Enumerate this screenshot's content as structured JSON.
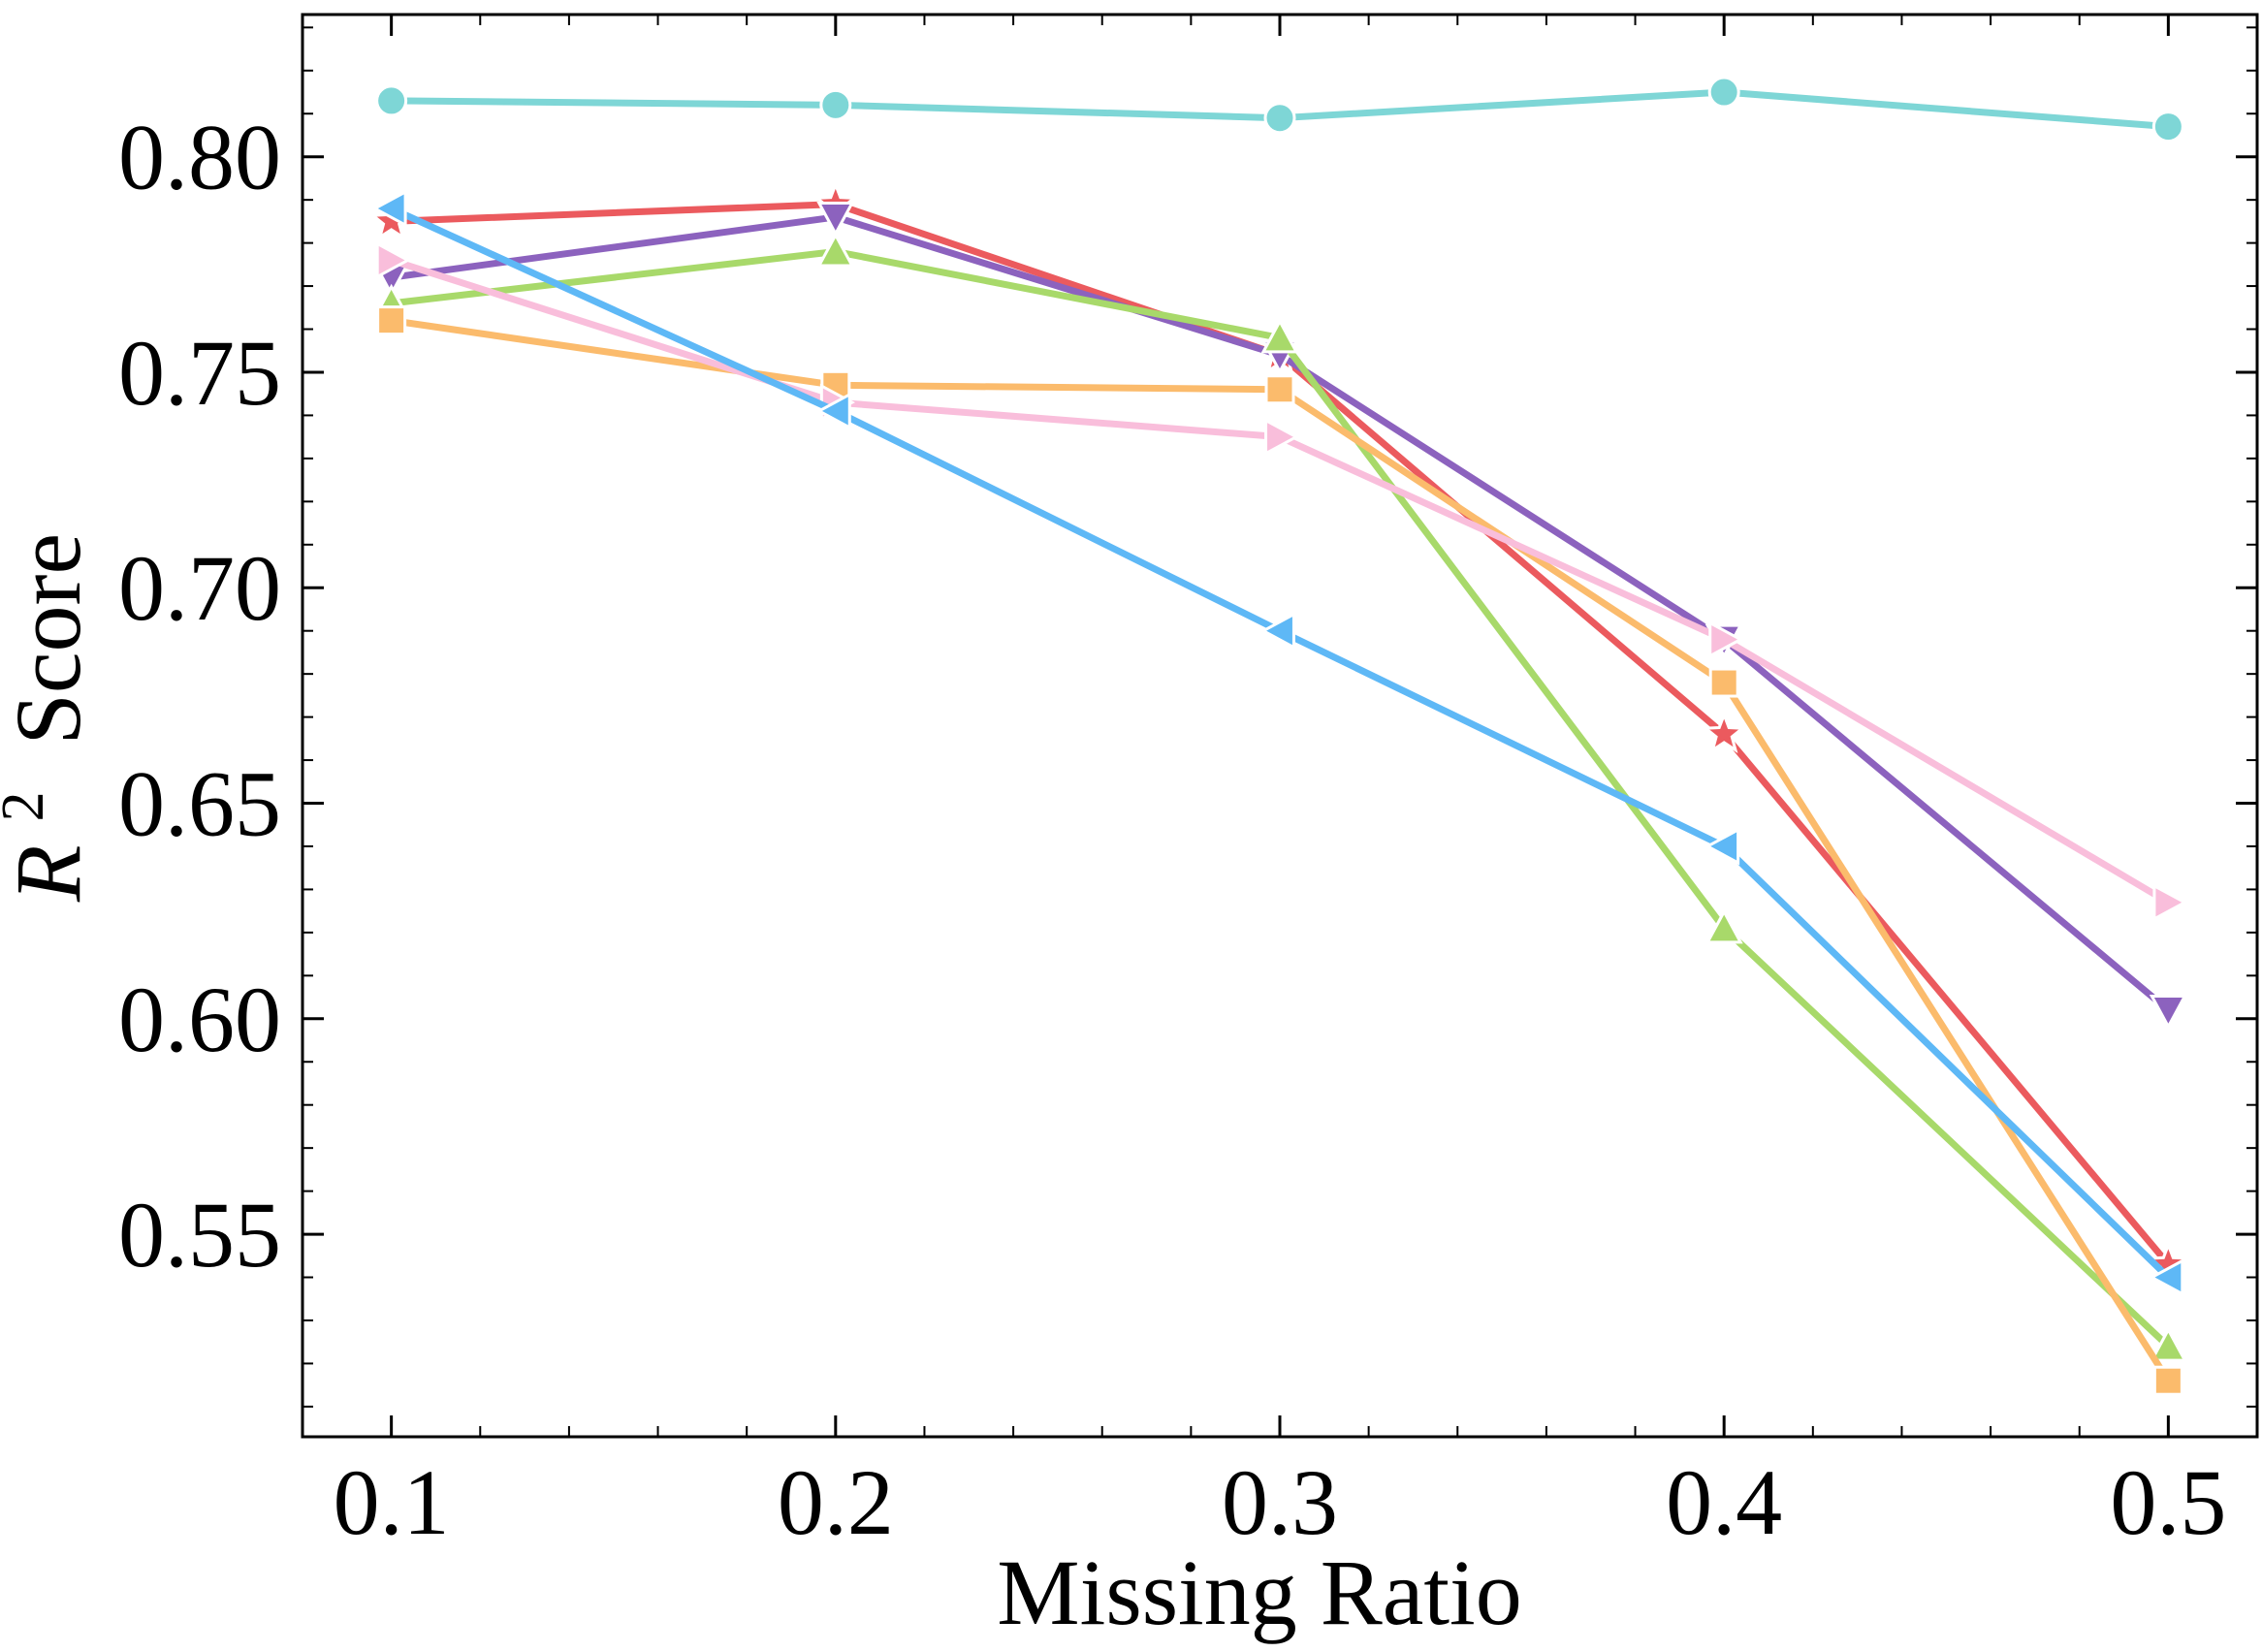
{
  "chart_data": {
    "type": "line",
    "xlabel": "Missing Ratio",
    "ylabel": {
      "symbol": "R",
      "superscript": "2",
      "rest": "Score"
    },
    "x": [
      0.1,
      0.2,
      0.3,
      0.4,
      0.5
    ],
    "x_tick_labels": [
      "0.1",
      "0.2",
      "0.3",
      "0.4",
      "0.5"
    ],
    "y_tick_values": [
      0.55,
      0.6,
      0.65,
      0.7,
      0.75,
      0.8
    ],
    "y_tick_labels": [
      "0.55",
      "0.60",
      "0.65",
      "0.70",
      "0.75",
      "0.80"
    ],
    "xlim": [
      0.08,
      0.52
    ],
    "ylim": [
      0.503,
      0.833
    ],
    "grid": false,
    "series": [
      {
        "color": "#7ed6d6",
        "marker": "circle",
        "values": [
          0.813,
          0.812,
          0.809,
          0.815,
          0.807
        ]
      },
      {
        "color": "#eb5a5e",
        "marker": "star",
        "values": [
          0.785,
          0.789,
          0.754,
          0.666,
          0.543
        ]
      },
      {
        "color": "#8c62be",
        "marker": "triangle-down",
        "values": [
          0.772,
          0.786,
          0.754,
          0.688,
          0.602
        ]
      },
      {
        "color": "#a8d96a",
        "marker": "triangle-up",
        "values": [
          0.766,
          0.778,
          0.758,
          0.621,
          0.524
        ]
      },
      {
        "color": "#fbbb6c",
        "marker": "square",
        "values": [
          0.762,
          0.747,
          0.746,
          0.678,
          0.516
        ]
      },
      {
        "color": "#f9bedb",
        "marker": "triangle-right",
        "values": [
          0.776,
          0.743,
          0.735,
          0.688,
          0.627
        ]
      },
      {
        "color": "#5eb8f6",
        "marker": "triangle-left",
        "values": [
          0.788,
          0.741,
          0.69,
          0.64,
          0.54
        ]
      }
    ]
  }
}
